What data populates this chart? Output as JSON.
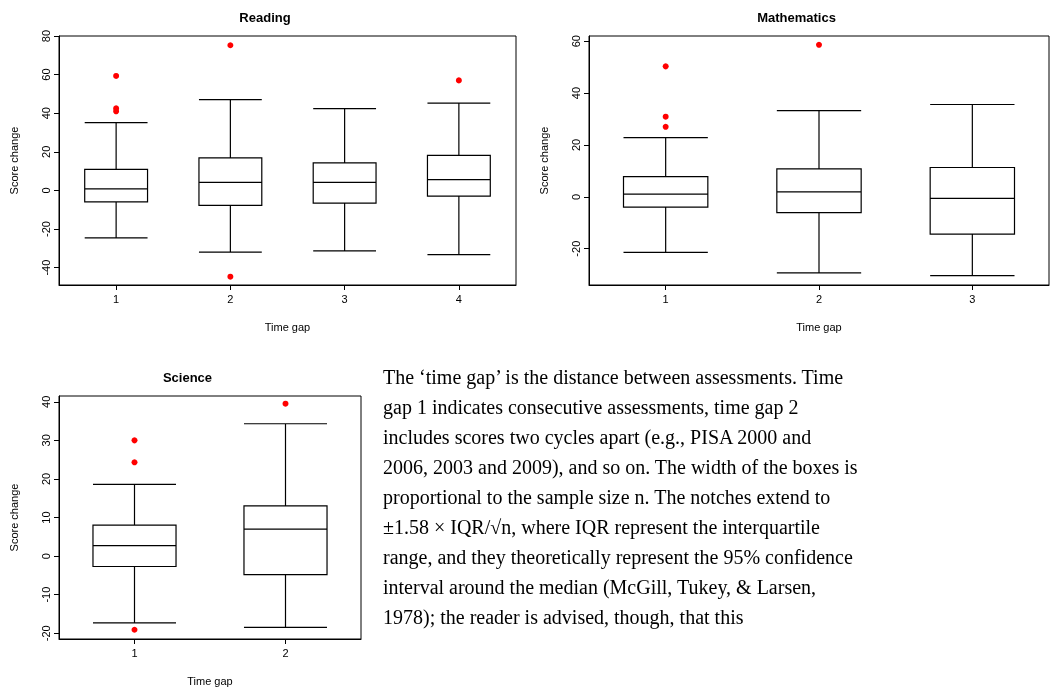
{
  "chart_data": [
    {
      "type": "box",
      "title": "Reading",
      "xlabel": "Time gap",
      "ylabel": "Score change",
      "categories": [
        "1",
        "2",
        "3",
        "4"
      ],
      "ylim": [
        -49,
        80
      ],
      "yticks": [
        -40,
        -20,
        0,
        20,
        40,
        60,
        80
      ],
      "grid": false,
      "boxes": [
        {
          "low": -24.6,
          "q1": -5.9,
          "median": 0.8,
          "q3": 10.9,
          "high": 35.1,
          "outliers": [
            59.3,
            42.5,
            41
          ]
        },
        {
          "low": -32,
          "q1": -7.8,
          "median": 4.2,
          "q3": 16.9,
          "high": 47,
          "outliers": [
            75.2,
            -44.7
          ]
        },
        {
          "low": -31.3,
          "q1": -6.6,
          "median": 4.2,
          "q3": 14.3,
          "high": 42.4
        },
        {
          "low": -33.3,
          "q1": -3,
          "median": 5.6,
          "q3": 18.2,
          "high": 45.2,
          "outliers": [
            57
          ]
        }
      ]
    },
    {
      "type": "box",
      "title": "Mathematics",
      "xlabel": "Time gap",
      "ylabel": "Score change",
      "categories": [
        "1",
        "2",
        "3"
      ],
      "ylim": [
        -34,
        62
      ],
      "yticks": [
        -20,
        0,
        20,
        40,
        60
      ],
      "grid": false,
      "boxes": [
        {
          "low": -21.4,
          "q1": -4,
          "median": 1,
          "q3": 7.8,
          "high": 22.8,
          "outliers": [
            50.3,
            30.9,
            27
          ]
        },
        {
          "low": -29.3,
          "q1": -6.1,
          "median": 1.9,
          "q3": 10.8,
          "high": 33.2,
          "outliers": [
            58.6
          ]
        },
        {
          "low": -30.4,
          "q1": -14.4,
          "median": -0.6,
          "q3": 11.3,
          "high": 35.6
        }
      ]
    },
    {
      "type": "box",
      "title": "Science",
      "xlabel": "Time gap",
      "ylabel": "Score change",
      "categories": [
        "1",
        "2"
      ],
      "ylim": [
        -21.5,
        41.5
      ],
      "yticks": [
        -20,
        -10,
        0,
        10,
        20,
        30,
        40
      ],
      "grid": false,
      "boxes": [
        {
          "low": -17.3,
          "q1": -2.7,
          "median": 2.7,
          "q3": 8,
          "high": 18.6,
          "outliers": [
            30,
            24.3,
            -19.1
          ]
        },
        {
          "low": -18.5,
          "q1": -4.8,
          "median": 7,
          "q3": 13,
          "high": 34.3,
          "outliers": [
            39.5
          ]
        }
      ]
    },
    {
      "type": "other",
      "annotations": [
        "The ‘time gap’ is the distance between assessments. Time gap 1 indicates consecutive assessments, time gap 2 includes scores two cycles apart (e.g., PISA 2000 and 2006, 2003 and 2009), and so on. The width of the boxes is proportional to the sample size n. The notches extend to ±1.58 × IQR/√n, where IQR represent the interquartile range, and they theoretically represent the 95% confidence interval around the median (McGill, Tukey, & Larsen, 1978); the reader is advised, though, that this"
      ]
    }
  ]
}
